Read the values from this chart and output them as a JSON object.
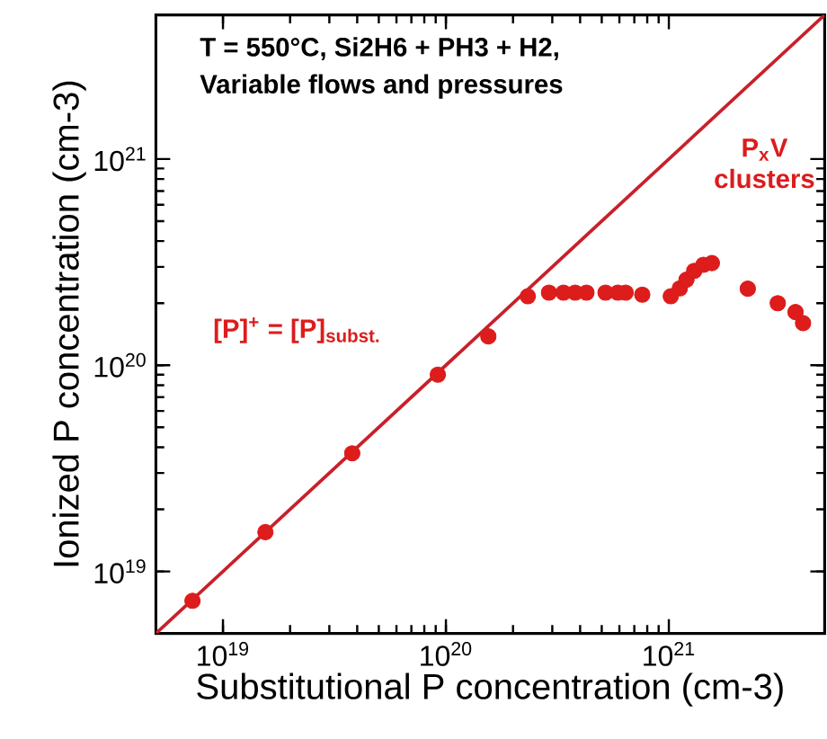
{
  "chart_data": {
    "type": "scatter",
    "xlabel": "Substitutional P concentration (cm-3)",
    "ylabel": "Ionized P concentration (cm-3)",
    "log": "xy",
    "xlim": [
      5e+18,
      5e+21
    ],
    "ylim": [
      5e+18,
      5e+21
    ],
    "xticks": [
      {
        "value": 1e+19,
        "label": "10$^{19}$"
      },
      {
        "value": 1e+20,
        "label": "10$^{20}$"
      },
      {
        "value": 1e+21,
        "label": "10$^{21}$"
      }
    ],
    "yticks": [
      {
        "value": 1e+19,
        "label": "10$^{19}$"
      },
      {
        "value": 1e+20,
        "label": "10$^{20}$"
      },
      {
        "value": 1e+21,
        "label": "10$^{21}$"
      }
    ],
    "annotations": [
      "T = 550°C, Si2H6 + PH3 + H2,",
      "Variable flows and pressures",
      "[P]$^{+}$ = [P]$_{subst.}$",
      "P$_{x}$V clusters"
    ],
    "series": [
      {
        "color": "#dd1c1c",
        "marker": "circle",
        "x": [
          7.3e+18,
          1.55e+19,
          3.8e+19,
          9.2e+19,
          1.55e+20,
          2.33e+20,
          2.9e+20,
          3.37e+20,
          3.8e+20,
          4.27e+20,
          5.2e+20,
          5.9e+20,
          6.4e+20,
          7.6e+20,
          1.02e+21,
          1.12e+21,
          1.2e+21,
          1.3e+21,
          1.43e+21,
          1.56e+21,
          2.26e+21,
          3.08e+21,
          3.7e+21,
          4e+21
        ],
        "values": [
          7.2e+18,
          1.55e+19,
          3.74e+19,
          9e+19,
          1.38e+20,
          2.16e+20,
          2.25e+20,
          2.25e+20,
          2.25e+20,
          2.25e+20,
          2.25e+20,
          2.25e+20,
          2.25e+20,
          2.2e+20,
          2.16e+20,
          2.36e+20,
          2.6e+20,
          2.87e+20,
          3.07e+20,
          3.13e+20,
          2.35e+20,
          2e+20,
          1.81e+20,
          1.6e+20
        ]
      },
      {
        "type": "line",
        "color": "#c8202a",
        "marker": "none",
        "line_style": "solid",
        "x": [
          5e+18,
          5e+21
        ],
        "values": [
          5e+18,
          5e+21
        ]
      }
    ]
  }
}
